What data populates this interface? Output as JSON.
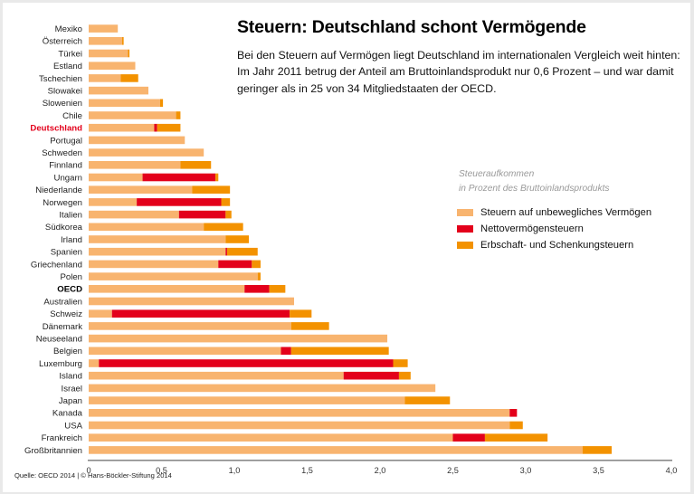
{
  "header": {
    "title": "Steuern: Deutschland schont Vermögende",
    "intro": "Bei den Steuern auf Vermögen liegt Deutschland im internationalen Vergleich weit hinten: Im Jahr 2011 betrug der Anteil am Bruttoinlandsprodukt nur 0,6 Prozent – und war damit geringer als in 25 von 34 Mitgliedstaaten der OECD."
  },
  "legend": {
    "title_line1": "Steueraufkommen",
    "title_line2": "in Prozent des Bruttoinlandsprodukts",
    "items": [
      {
        "label": "Steuern auf unbewegliches Vermögen",
        "color": "#f8b46f"
      },
      {
        "label": "Nettovermögensteuern",
        "color": "#e3001b"
      },
      {
        "label": "Erbschaft- und Schenkungsteuern",
        "color": "#f39200"
      }
    ]
  },
  "source": "Quelle: OECD 2014 | © Hans-Böckler-Stiftung 2014",
  "chart_data": {
    "type": "bar",
    "orientation": "horizontal",
    "stacked": true,
    "title": "Steuern: Deutschland schont Vermögende",
    "xlabel": "Steueraufkommen in Prozent des Bruttoinlandsprodukts",
    "ylabel": "",
    "xlim": [
      0,
      4.0
    ],
    "x_ticks": [
      "0",
      "0,5",
      "1,0",
      "1,5",
      "2,0",
      "2,5",
      "3,0",
      "3,5",
      "4,0"
    ],
    "x_tick_values": [
      0,
      0.5,
      1.0,
      1.5,
      2.0,
      2.5,
      3.0,
      3.5,
      4.0
    ],
    "grid": false,
    "legend_position": "right",
    "highlight": {
      "Deutschland": "#e3001b",
      "OECD": "bold"
    },
    "categories": [
      "Mexiko",
      "Österreich",
      "Türkei",
      "Estland",
      "Tschechien",
      "Slowakei",
      "Slowenien",
      "Chile",
      "Deutschland",
      "Portugal",
      "Schweden",
      "Finnland",
      "Ungarn",
      "Niederlande",
      "Norwegen",
      "Italien",
      "Südkorea",
      "Irland",
      "Spanien",
      "Griechenland",
      "Polen",
      "OECD",
      "Australien",
      "Schweiz",
      "Dänemark",
      "Neuseeland",
      "Belgien",
      "Luxemburg",
      "Island",
      "Israel",
      "Japan",
      "Kanada",
      "USA",
      "Frankreich",
      "Großbritannien"
    ],
    "series": [
      {
        "name": "Steuern auf unbewegliches Vermögen",
        "color": "#f8b46f",
        "values": [
          0.2,
          0.23,
          0.27,
          0.32,
          0.22,
          0.41,
          0.49,
          0.6,
          0.45,
          0.66,
          0.79,
          0.63,
          0.37,
          0.71,
          0.33,
          0.62,
          0.79,
          0.94,
          0.94,
          0.89,
          1.16,
          1.07,
          1.41,
          0.16,
          1.39,
          2.05,
          1.32,
          0.07,
          1.75,
          2.38,
          2.17,
          2.89,
          2.89,
          2.5,
          3.39
        ]
      },
      {
        "name": "Nettovermögensteuern",
        "color": "#e3001b",
        "values": [
          0,
          0,
          0,
          0,
          0,
          0,
          0,
          0,
          0.02,
          0,
          0,
          0,
          0.5,
          0,
          0.58,
          0.32,
          0,
          0,
          0.01,
          0.23,
          0,
          0.17,
          0,
          1.22,
          0,
          0,
          0.07,
          2.02,
          0.38,
          0,
          0,
          0.05,
          0,
          0.22,
          0
        ]
      },
      {
        "name": "Erbschaft- und Schenkungsteuern",
        "color": "#f39200",
        "values": [
          0,
          0.01,
          0.01,
          0,
          0.12,
          0,
          0.02,
          0.03,
          0.16,
          0,
          0,
          0.21,
          0.02,
          0.26,
          0.06,
          0.04,
          0.27,
          0.16,
          0.21,
          0.06,
          0.02,
          0.11,
          0,
          0.15,
          0.26,
          0,
          0.67,
          0.1,
          0.08,
          0,
          0.31,
          0,
          0.09,
          0.43,
          0.2
        ]
      }
    ]
  }
}
